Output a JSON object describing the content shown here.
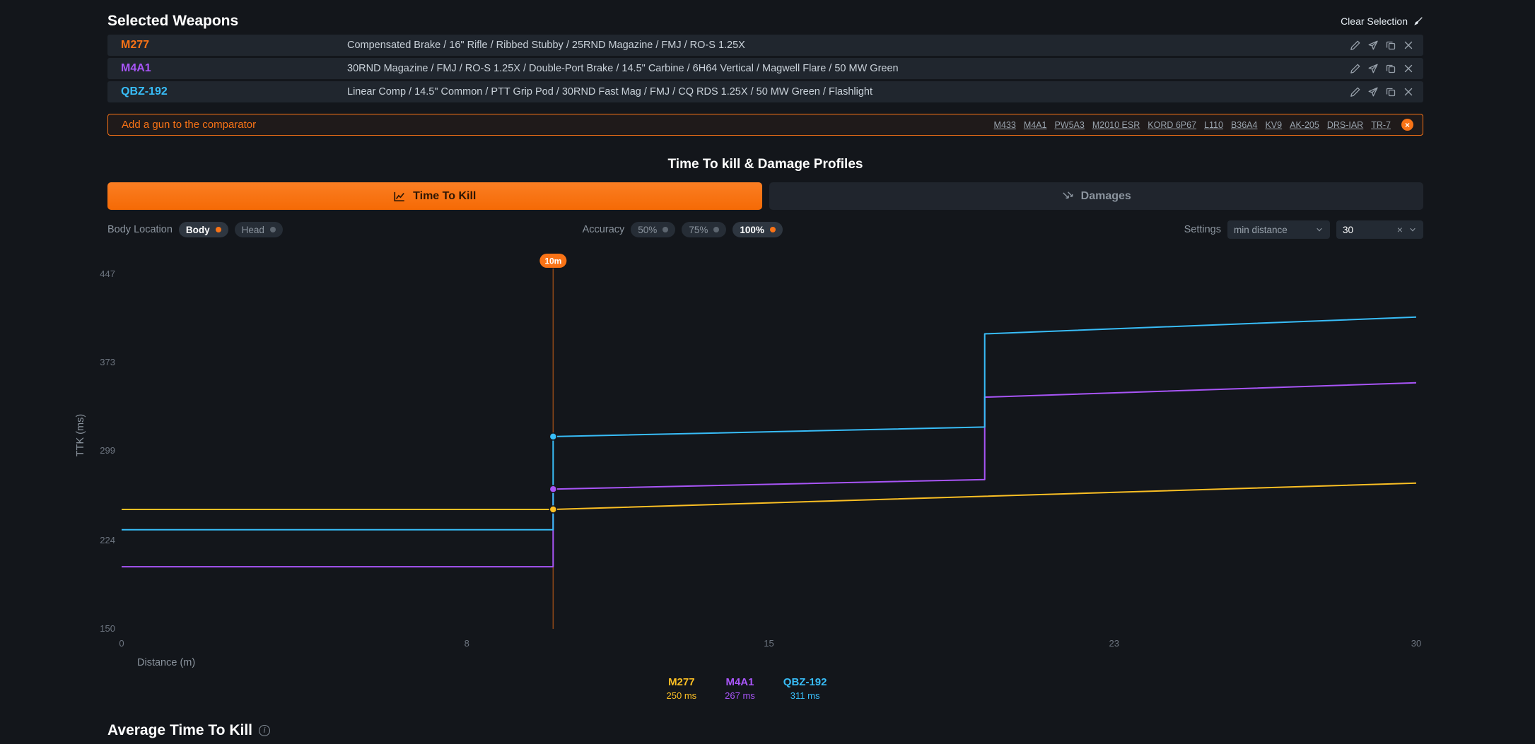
{
  "accent_color": "#f97316",
  "header": {
    "title": "Selected Weapons",
    "clear_selection": "Clear Selection"
  },
  "weapons": [
    {
      "name": "M277",
      "color": "#f97316",
      "attachments": "Compensated Brake / 16\" Rifle / Ribbed Stubby / 25RND Magazine / FMJ / RO-S 1.25X"
    },
    {
      "name": "M4A1",
      "color": "#a855f7",
      "attachments": "30RND Magazine / FMJ / RO-S 1.25X / Double-Port Brake / 14.5\" Carbine / 6H64 Vertical / Magwell Flare / 50 MW Green"
    },
    {
      "name": "QBZ-192",
      "color": "#38bdf8",
      "attachments": "Linear Comp / 14.5\" Common / PTT Grip Pod / 30RND Fast Mag / FMJ / CQ RDS 1.25X / 50 MW Green / Flashlight"
    }
  ],
  "row_action_icons": [
    "edit-icon",
    "share-icon",
    "copy-icon",
    "close-icon"
  ],
  "add_bar": {
    "label": "Add a gun to the comparator",
    "links": [
      "M433",
      "M4A1",
      "PW5A3",
      "M2010 ESR",
      "KORD 6P67",
      "L110",
      "B36A4",
      "KV9",
      "AK-205",
      "DRS-IAR",
      "TR-7"
    ]
  },
  "section": {
    "title": "Time To kill & Damage Profiles",
    "tabs": [
      {
        "label": "Time To Kill",
        "active": true
      },
      {
        "label": "Damages",
        "active": false
      }
    ]
  },
  "controls": {
    "body_location": {
      "label": "Body Location",
      "options": [
        "Body",
        "Head"
      ],
      "selected": "Body"
    },
    "accuracy": {
      "label": "Accuracy",
      "options": [
        "50%",
        "75%",
        "100%"
      ],
      "selected": "100%"
    },
    "settings": {
      "label": "Settings",
      "sort_value": "min distance",
      "distance_value": "30"
    }
  },
  "chart_data": {
    "type": "line",
    "title": "",
    "xlabel": "Distance (m)",
    "ylabel": "TTK (ms)",
    "xlim": [
      0,
      30
    ],
    "ylim": [
      150,
      447
    ],
    "x_ticks": [
      0,
      8,
      15,
      23,
      30
    ],
    "y_ticks": [
      150,
      224,
      299,
      373,
      447
    ],
    "grid": false,
    "legend_position": "none",
    "marker_x": 10,
    "marker_label": "10m",
    "marker_color": "#f97316",
    "series": [
      {
        "name": "M277",
        "color": "#fbbf24",
        "marker_value": 250,
        "points": [
          [
            0,
            250
          ],
          [
            10,
            250
          ],
          [
            30,
            272
          ]
        ]
      },
      {
        "name": "M4A1",
        "color": "#a855f7",
        "marker_value": 267,
        "points": [
          [
            0,
            202
          ],
          [
            10,
            202
          ],
          [
            10,
            267
          ],
          [
            20,
            275
          ],
          [
            20,
            344
          ],
          [
            30,
            356
          ]
        ]
      },
      {
        "name": "QBZ-192",
        "color": "#38bdf8",
        "marker_value": 311,
        "points": [
          [
            0,
            233
          ],
          [
            10,
            233
          ],
          [
            10,
            311
          ],
          [
            20,
            319
          ],
          [
            20,
            397
          ],
          [
            30,
            411
          ]
        ]
      }
    ]
  },
  "tooltip": {
    "items": [
      {
        "name": "M277",
        "value": "250 ms",
        "color": "#fbbf24"
      },
      {
        "name": "M4A1",
        "value": "267 ms",
        "color": "#a855f7"
      },
      {
        "name": "QBZ-192",
        "value": "311 ms",
        "color": "#38bdf8"
      }
    ]
  },
  "footer": {
    "title": "Average Time To Kill"
  }
}
